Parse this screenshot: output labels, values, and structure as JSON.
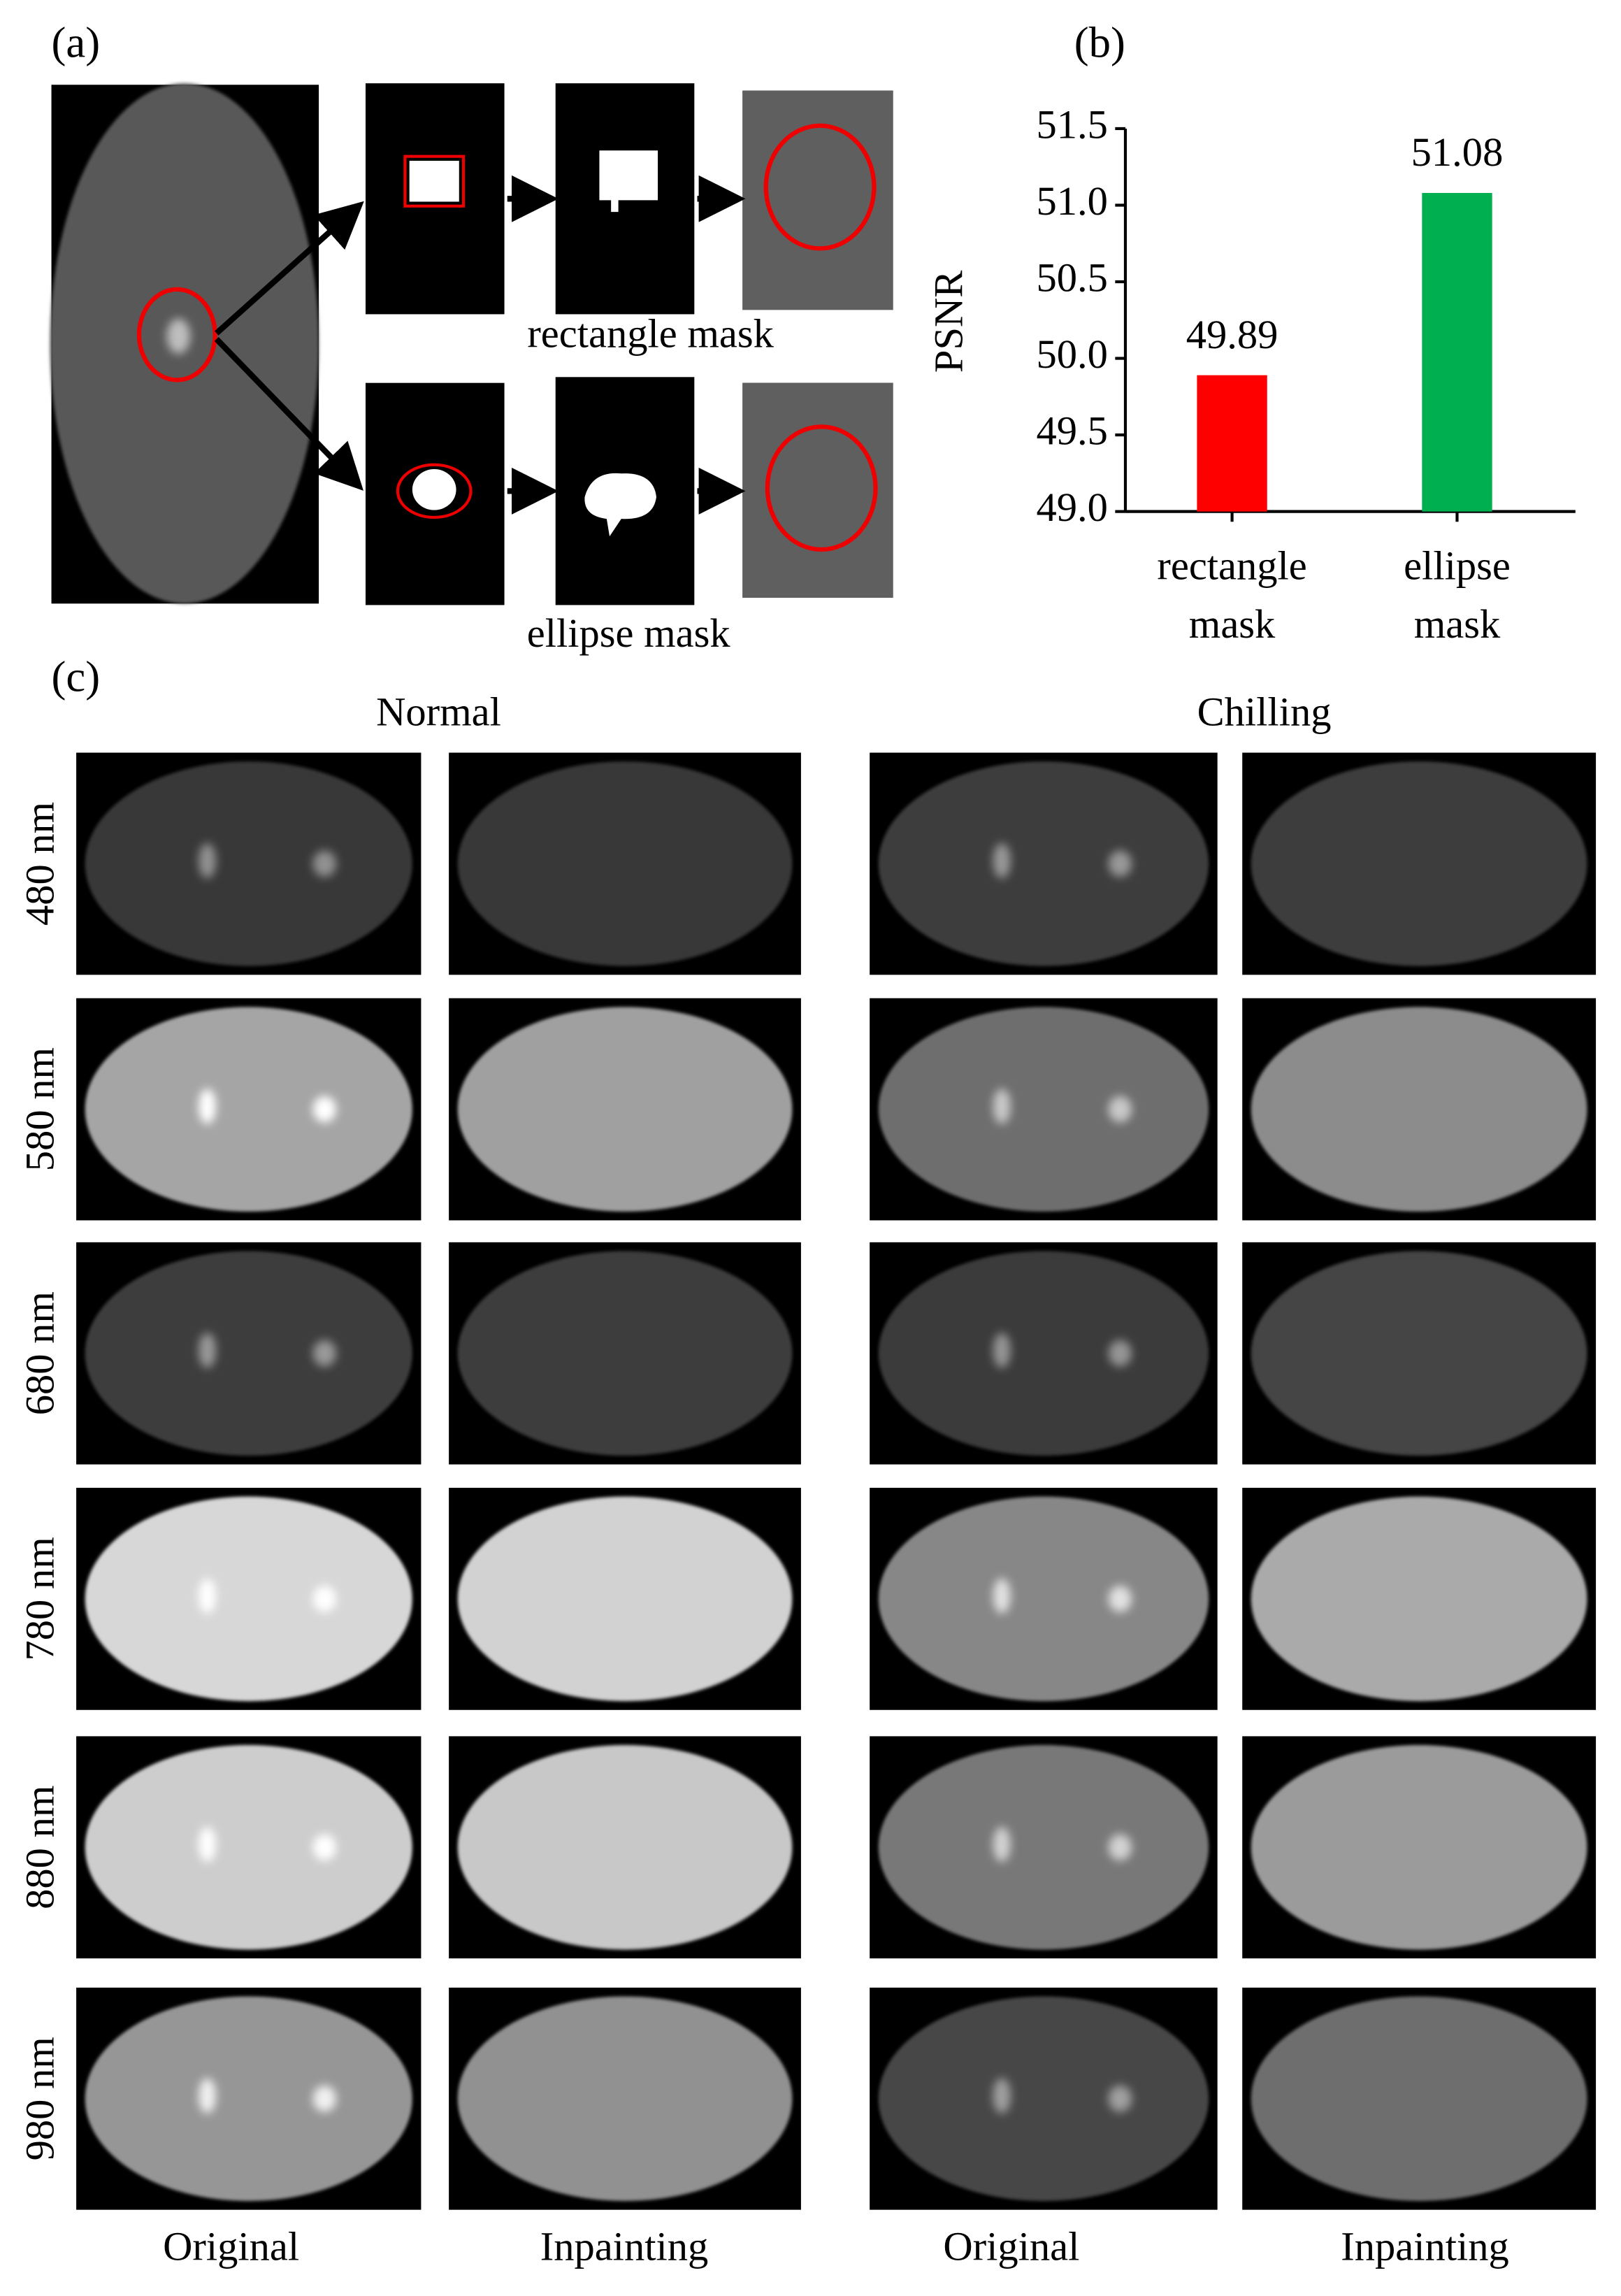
{
  "panel_a": {
    "label": "(a)",
    "rectangle_caption": "rectangle mask",
    "ellipse_caption": "ellipse mask"
  },
  "panel_b": {
    "label": "(b)"
  },
  "chart_data": {
    "type": "bar",
    "y_label": "PSNR",
    "categories": [
      "rectangle mask",
      "ellipse mask"
    ],
    "values": [
      49.89,
      51.08
    ],
    "colors": [
      "#ff0000",
      "#00b050"
    ],
    "ylim": [
      49.0,
      51.5
    ],
    "yticks": [
      {
        "value": 49.0,
        "label": "49.0"
      },
      49.5,
      {
        "value": 50.0,
        "label": "50.0"
      },
      50.5,
      {
        "value": 51.0,
        "label": "51.0"
      },
      51.5
    ]
  },
  "panel_c": {
    "label": "(c)",
    "groups": [
      "Normal",
      "Chilling"
    ],
    "rows": [
      "480 nm",
      "580 nm",
      "680 nm",
      "780 nm",
      "880 nm",
      "980 nm"
    ],
    "columns": [
      "Original",
      "Inpainting",
      "Original",
      "Inpainting"
    ]
  }
}
